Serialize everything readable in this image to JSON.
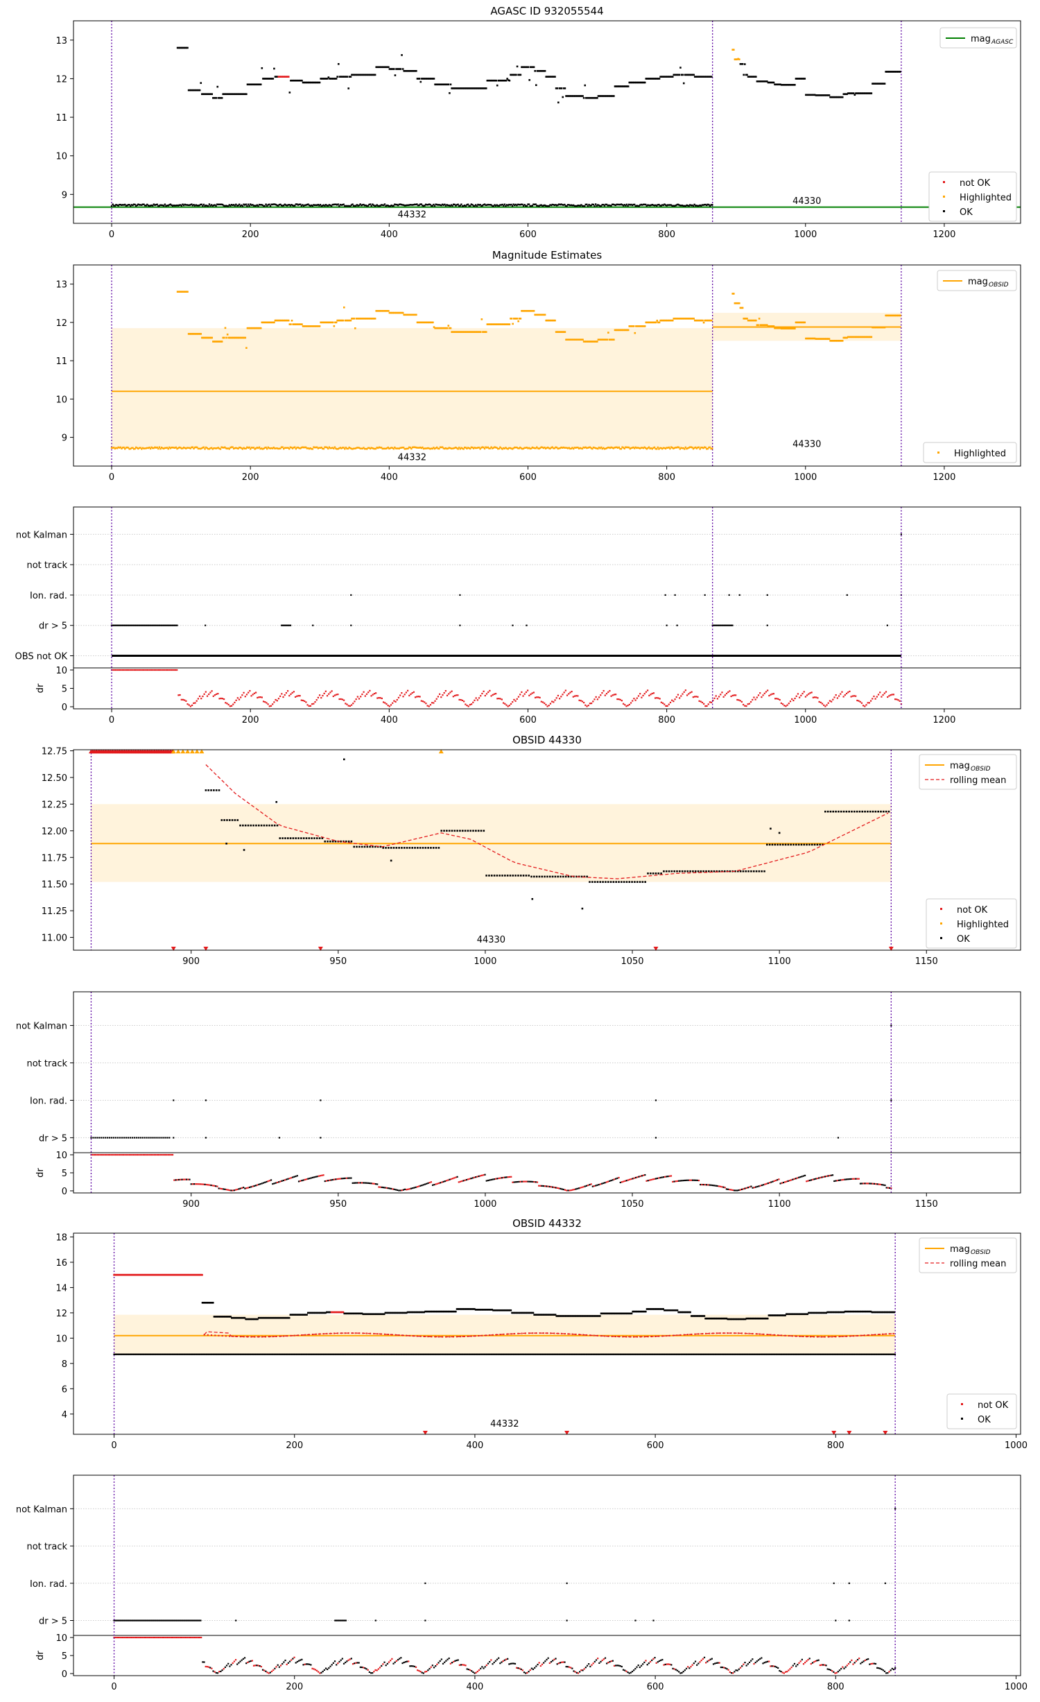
{
  "colors": {
    "ok": "#000000",
    "not_ok": "#e31a1c",
    "highlighted": "#ffa500",
    "agasc_line": "#007f00",
    "obsid_band": "#fff3dc",
    "obs_boundary": "#5b00a0",
    "rolling": "#e31a1c",
    "grid": "#cccccc"
  },
  "chart_data": [
    {
      "name": "panel-agasc",
      "type": "scatter",
      "title": "AGASC ID 932055544",
      "xlim": [
        -55,
        1310
      ],
      "ylim": [
        8.25,
        13.5
      ],
      "xticks": [
        0,
        200,
        400,
        600,
        800,
        1000,
        1200
      ],
      "yticks": [
        9,
        10,
        11,
        12,
        13
      ],
      "obs_boundaries": [
        0,
        866,
        1138
      ],
      "obs_labels": [
        {
          "text": "44332",
          "x": 433,
          "y": 8.4
        },
        {
          "text": "44330",
          "x": 1002,
          "y": 8.75
        }
      ],
      "hline": {
        "y": 8.67
      },
      "legend_top": [
        {
          "label": "mag",
          "sub": "AGASC",
          "kind": "line",
          "color": "agasc_line"
        }
      ],
      "legend_bottom": [
        {
          "label": "not OK",
          "kind": "dot",
          "color": "not_ok"
        },
        {
          "label": "Highlighted",
          "kind": "dot",
          "color": "highlighted"
        },
        {
          "label": "OK",
          "kind": "dot",
          "color": "ok"
        }
      ]
    },
    {
      "name": "panel-magnitude-estimates",
      "type": "scatter",
      "title": "Magnitude Estimates",
      "xlim": [
        -55,
        1310
      ],
      "ylim": [
        8.25,
        13.5
      ],
      "xticks": [
        0,
        200,
        400,
        600,
        800,
        1000,
        1200
      ],
      "yticks": [
        9,
        10,
        11,
        12,
        13
      ],
      "obs_boundaries": [
        0,
        866,
        1138
      ],
      "obs_labels": [
        {
          "text": "44332",
          "x": 433,
          "y": 8.4
        },
        {
          "text": "44330",
          "x": 1002,
          "y": 8.75
        }
      ],
      "bands": [
        {
          "x0": 0,
          "x1": 866,
          "y0": 8.7,
          "y1": 11.85,
          "mean": 10.2
        },
        {
          "x0": 866,
          "x1": 1138,
          "y0": 11.52,
          "y1": 12.25,
          "mean": 11.88
        }
      ],
      "legend_top": [
        {
          "label": "mag",
          "sub": "OBSID",
          "kind": "line",
          "color": "highlighted"
        }
      ],
      "legend_bottom": [
        {
          "label": "Highlighted",
          "kind": "dot",
          "color": "highlighted"
        }
      ]
    },
    {
      "name": "panel-flags-all",
      "type": "scatter",
      "xlim": [
        -55,
        1310
      ],
      "xticks": [
        0,
        200,
        400,
        600,
        800,
        1000,
        1200
      ],
      "obs_boundaries": [
        0,
        866,
        1138
      ],
      "flag_labels": [
        "not Kalman",
        "not track",
        "Ion. rad.",
        "dr > 5",
        "OBS not OK"
      ],
      "dr_yticks": [
        0,
        5,
        10
      ],
      "dr_label": "dr"
    },
    {
      "name": "panel-obsid-44330",
      "type": "scatter",
      "title": "OBSID 44330",
      "xlim": [
        860,
        1182
      ],
      "ylim": [
        10.88,
        12.76
      ],
      "xticks": [
        900,
        950,
        1000,
        1050,
        1100,
        1150
      ],
      "yticks": [
        11.0,
        11.25,
        11.5,
        11.75,
        12.0,
        12.25,
        12.5,
        12.75
      ],
      "ytick_labels": [
        "11.00",
        "11.25",
        "11.50",
        "11.75",
        "12.00",
        "12.25",
        "12.50",
        "12.75"
      ],
      "obs_boundaries": [
        866,
        1138
      ],
      "obs_labels": [
        {
          "text": "44330",
          "x": 1002,
          "y": 10.95
        }
      ],
      "bands": [
        {
          "x0": 866,
          "x1": 1138,
          "y0": 11.52,
          "y1": 12.25,
          "mean": 11.88
        }
      ],
      "legend_top": [
        {
          "label": "mag",
          "sub": "OBSID",
          "kind": "line",
          "color": "highlighted"
        },
        {
          "label": "rolling mean",
          "kind": "dash",
          "color": "rolling"
        }
      ],
      "legend_bottom": [
        {
          "label": "not OK",
          "kind": "dot",
          "color": "not_ok"
        },
        {
          "label": "Highlighted",
          "kind": "dot",
          "color": "highlighted"
        },
        {
          "label": "OK",
          "kind": "dot",
          "color": "ok"
        }
      ]
    },
    {
      "name": "panel-flags-44330",
      "type": "scatter",
      "xlim": [
        860,
        1182
      ],
      "xticks": [
        900,
        950,
        1000,
        1050,
        1100,
        1150
      ],
      "obs_boundaries": [
        866,
        1138
      ],
      "flag_labels": [
        "not Kalman",
        "not track",
        "Ion. rad.",
        "dr > 5"
      ],
      "dr_yticks": [
        0,
        5,
        10
      ],
      "dr_label": "dr"
    },
    {
      "name": "panel-obsid-44332",
      "type": "scatter",
      "title": "OBSID 44332",
      "xlim": [
        -45,
        1005
      ],
      "ylim": [
        2.4,
        18.3
      ],
      "xticks": [
        0,
        200,
        400,
        600,
        800,
        1000
      ],
      "yticks": [
        4,
        6,
        8,
        10,
        12,
        14,
        16,
        18
      ],
      "obs_boundaries": [
        0,
        866
      ],
      "obs_labels": [
        {
          "text": "44332",
          "x": 433,
          "y": 3.0
        }
      ],
      "bands": [
        {
          "x0": 0,
          "x1": 866,
          "y0": 8.7,
          "y1": 11.85,
          "mean": 10.2
        }
      ],
      "legend_top": [
        {
          "label": "mag",
          "sub": "OBSID",
          "kind": "line",
          "color": "highlighted"
        },
        {
          "label": "rolling mean",
          "kind": "dash",
          "color": "rolling"
        }
      ],
      "legend_bottom": [
        {
          "label": "not OK",
          "kind": "dot",
          "color": "not_ok"
        },
        {
          "label": "OK",
          "kind": "dot",
          "color": "ok"
        }
      ]
    },
    {
      "name": "panel-flags-44332",
      "type": "scatter",
      "xlim": [
        -45,
        1005
      ],
      "xticks": [
        0,
        200,
        400,
        600,
        800,
        1000
      ],
      "obs_boundaries": [
        0,
        866
      ],
      "flag_labels": [
        "not Kalman",
        "not track",
        "Ion. rad.",
        "dr > 5"
      ],
      "dr_yticks": [
        0,
        5,
        10
      ],
      "dr_label": "dr"
    }
  ]
}
